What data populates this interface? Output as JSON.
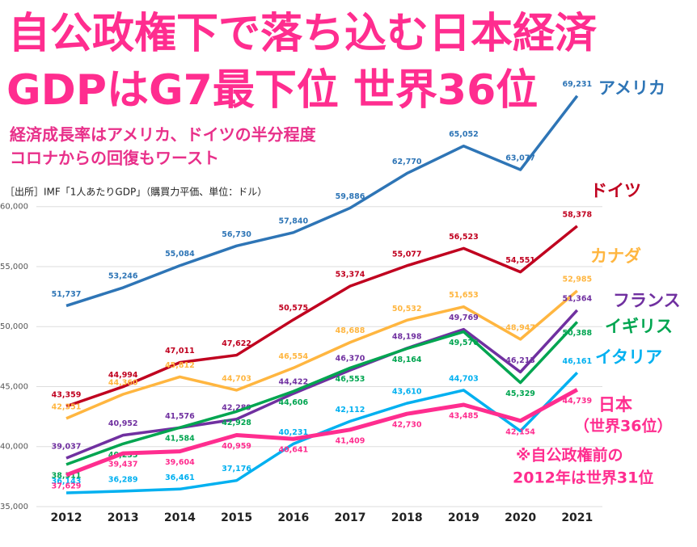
{
  "chart_data": {
    "type": "line",
    "title": "自公政権下で落ち込む日本経済",
    "subtitle": "GDPはG7最下位 世界36位",
    "annotations": [
      "経済成長率はアメリカ、ドイツの半分程度",
      "コロナからの回復もワースト",
      "［出所］IMF「1人あたりGDP」（購買力平価、単位：ドル）",
      "（世界36位）",
      "※自公政権前の",
      "2012年は世界31位"
    ],
    "categories": [
      "2012",
      "2013",
      "2014",
      "2015",
      "2016",
      "2017",
      "2018",
      "2019",
      "2020",
      "2021"
    ],
    "ylim": [
      35000,
      61800
    ],
    "yticks": [
      {
        "value": 35000,
        "label": "35,000"
      },
      {
        "value": 40000,
        "label": "40,000"
      },
      {
        "value": 45000,
        "label": "45,000"
      },
      {
        "value": 50000,
        "label": "50,000"
      },
      {
        "value": 55000,
        "label": "55,000"
      },
      {
        "value": 60000,
        "label": "60,000"
      }
    ],
    "grid": true,
    "series": [
      {
        "name": "アメリカ",
        "color": "#2e75b6",
        "values": [
          51737,
          53246,
          55084,
          56730,
          57840,
          59886,
          62770,
          65052,
          63077,
          69231
        ],
        "value_labels": [
          "51,737",
          "53,246",
          "55,084",
          "56,730",
          "57,840",
          "59,886",
          "62,770",
          "65,052",
          "63,077",
          "69,231"
        ]
      },
      {
        "name": "ドイツ",
        "color": "#c0001f",
        "values": [
          43359,
          44994,
          47011,
          47622,
          50575,
          53374,
          55077,
          56523,
          54551,
          58378
        ],
        "value_labels": [
          "43,359",
          "44,994",
          "47,011",
          "47,622",
          "50,575",
          "53,374",
          "55,077",
          "56,523",
          "54,551",
          "58,378"
        ]
      },
      {
        "name": "カナダ",
        "color": "#ffb640",
        "values": [
          42351,
          44360,
          45812,
          44703,
          46554,
          48688,
          50532,
          51653,
          48947,
          52985
        ],
        "value_labels": [
          "42,351",
          "44,360",
          "45,812",
          "44,703",
          "46,554",
          "48,688",
          "50,532",
          "51,653",
          "48,947",
          "52,985"
        ]
      },
      {
        "name": "フランス",
        "color": "#7030a0",
        "values": [
          39037,
          40952,
          41576,
          42289,
          44422,
          46370,
          48198,
          49769,
          46213,
          51364
        ],
        "value_labels": [
          "39,037",
          "40,952",
          "41,576",
          "42,289",
          "44,422",
          "46,370",
          "48,198",
          "49,769",
          "46,213",
          "51,364"
        ]
      },
      {
        "name": "イギリス",
        "color": "#00a550",
        "values": [
          38511,
          40233,
          41584,
          42928,
          44606,
          46553,
          48164,
          49576,
          45329,
          50388
        ],
        "value_labels": [
          "38,511",
          "40,233",
          "41,584",
          "42,928",
          "44,606",
          "46,553",
          "48,164",
          "49,576",
          "45,329",
          "50,388"
        ]
      },
      {
        "name": "イタリア",
        "color": "#00b0f0",
        "values": [
          36143,
          36289,
          36461,
          37176,
          40231,
          42112,
          43610,
          44703,
          41300,
          46161
        ],
        "value_labels": [
          "36,143",
          "36,289",
          "36,461",
          "37,176",
          "40,231",
          "42,112",
          "43,610",
          "44,703",
          null,
          "46,161"
        ]
      },
      {
        "name": "日本",
        "color": "#ff2d8f",
        "values": [
          37629,
          39437,
          39604,
          40959,
          40641,
          41409,
          42730,
          43485,
          42154,
          44739
        ],
        "value_labels": [
          "37,629",
          "39,437",
          "39,604",
          "40,959",
          "40,641",
          "41,409",
          "42,730",
          "43,485",
          "42,154",
          "44,739"
        ]
      }
    ]
  }
}
